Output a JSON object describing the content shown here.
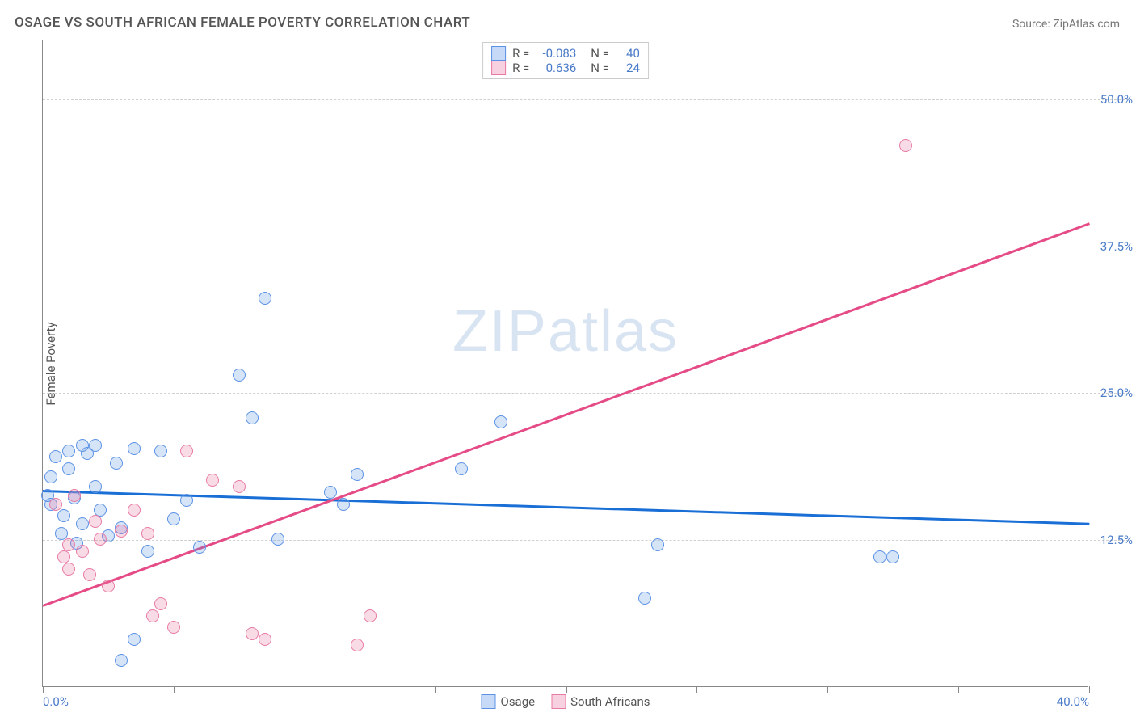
{
  "title": "OSAGE VS SOUTH AFRICAN FEMALE POVERTY CORRELATION CHART",
  "source_label": "Source: ZipAtlas.com",
  "ylabel": "Female Poverty",
  "watermark_a": "ZIP",
  "watermark_b": "atlas",
  "chart": {
    "type": "scatter",
    "background_color": "#ffffff",
    "grid_color": "#d0d0d0",
    "axis_color": "#888888",
    "xlim": [
      0,
      40
    ],
    "ylim": [
      0,
      55
    ],
    "xtick_positions": [
      0,
      5,
      10,
      15,
      20,
      25,
      30,
      35,
      40
    ],
    "xtick_labels": {
      "0": "0.0%",
      "40": "40.0%"
    },
    "ytick_positions": [
      12.5,
      25.0,
      37.5,
      50.0
    ],
    "ytick_labels": [
      "12.5%",
      "25.0%",
      "37.5%",
      "50.0%"
    ],
    "marker_radius": 8,
    "marker_border_width": 1.5,
    "marker_fill_opacity": 0.25,
    "series": [
      {
        "name": "Osage",
        "color": "#5b92e5",
        "fill": "rgba(91,146,229,0.25)",
        "R": "-0.083",
        "N": "40",
        "trend": {
          "x1": 0,
          "y1": 16.8,
          "x2": 40,
          "y2": 14.0,
          "color": "#1a6fd6",
          "width": 2.5
        },
        "points": [
          [
            0.2,
            16.2
          ],
          [
            0.3,
            15.5
          ],
          [
            0.3,
            17.8
          ],
          [
            0.5,
            19.5
          ],
          [
            0.7,
            13.0
          ],
          [
            0.8,
            14.5
          ],
          [
            1.0,
            18.5
          ],
          [
            1.0,
            20.0
          ],
          [
            1.2,
            16.0
          ],
          [
            1.3,
            12.2
          ],
          [
            1.5,
            20.5
          ],
          [
            1.5,
            13.8
          ],
          [
            1.7,
            19.8
          ],
          [
            2.0,
            17.0
          ],
          [
            2.0,
            20.5
          ],
          [
            2.2,
            15.0
          ],
          [
            2.5,
            12.8
          ],
          [
            2.8,
            19.0
          ],
          [
            3.0,
            13.5
          ],
          [
            3.0,
            2.2
          ],
          [
            3.5,
            20.2
          ],
          [
            3.5,
            4.0
          ],
          [
            4.0,
            11.5
          ],
          [
            4.5,
            20.0
          ],
          [
            5.0,
            14.2
          ],
          [
            5.5,
            15.8
          ],
          [
            6.0,
            11.8
          ],
          [
            7.5,
            26.5
          ],
          [
            8.0,
            22.8
          ],
          [
            8.5,
            33.0
          ],
          [
            9.0,
            12.5
          ],
          [
            11.0,
            16.5
          ],
          [
            11.5,
            15.5
          ],
          [
            12.0,
            18.0
          ],
          [
            16.0,
            18.5
          ],
          [
            17.5,
            22.5
          ],
          [
            23.0,
            7.5
          ],
          [
            23.5,
            12.0
          ],
          [
            32.5,
            11.0
          ],
          [
            32.0,
            11.0
          ]
        ]
      },
      {
        "name": "South Africans",
        "color": "#e87ba4",
        "fill": "rgba(232,123,164,0.27)",
        "R": "0.636",
        "N": "24",
        "trend": {
          "x1": 0,
          "y1": 7.0,
          "x2": 40,
          "y2": 39.5,
          "color": "#e54b86",
          "width": 2.5
        },
        "points": [
          [
            0.5,
            15.5
          ],
          [
            0.8,
            11.0
          ],
          [
            1.0,
            12.0
          ],
          [
            1.0,
            10.0
          ],
          [
            1.2,
            16.2
          ],
          [
            1.5,
            11.5
          ],
          [
            1.8,
            9.5
          ],
          [
            2.0,
            14.0
          ],
          [
            2.2,
            12.5
          ],
          [
            2.5,
            8.5
          ],
          [
            3.0,
            13.2
          ],
          [
            3.5,
            15.0
          ],
          [
            4.0,
            13.0
          ],
          [
            4.2,
            6.0
          ],
          [
            4.5,
            7.0
          ],
          [
            5.0,
            5.0
          ],
          [
            5.5,
            20.0
          ],
          [
            6.5,
            17.5
          ],
          [
            7.5,
            17.0
          ],
          [
            8.0,
            4.5
          ],
          [
            8.5,
            4.0
          ],
          [
            12.0,
            3.5
          ],
          [
            12.5,
            6.0
          ],
          [
            33.0,
            46.0
          ]
        ]
      }
    ]
  },
  "legend_top": {
    "rows": [
      {
        "swatch_fill": "rgba(91,146,229,0.35)",
        "swatch_border": "#5b92e5",
        "r_label": "R =",
        "r_val": "-0.083",
        "n_label": "N =",
        "n_val": "40"
      },
      {
        "swatch_fill": "rgba(232,123,164,0.35)",
        "swatch_border": "#e87ba4",
        "r_label": "R =",
        "r_val": "0.636",
        "n_label": "N =",
        "n_val": "24"
      }
    ]
  },
  "legend_bottom": {
    "items": [
      {
        "swatch_fill": "rgba(91,146,229,0.35)",
        "swatch_border": "#5b92e5",
        "label": "Osage"
      },
      {
        "swatch_fill": "rgba(232,123,164,0.35)",
        "swatch_border": "#e87ba4",
        "label": "South Africans"
      }
    ]
  }
}
